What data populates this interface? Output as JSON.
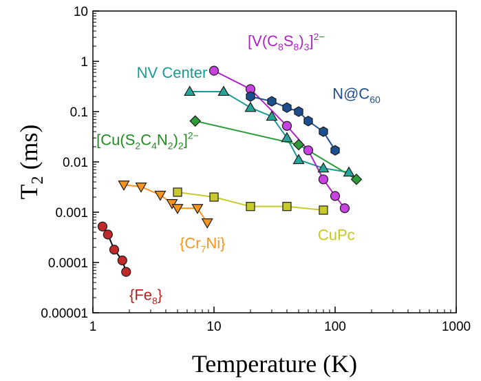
{
  "chart_data": {
    "type": "scatter",
    "xscale": "log",
    "yscale": "log",
    "xlim": [
      1,
      1000
    ],
    "ylim": [
      1e-05,
      10
    ],
    "xlabel": "Temperature (K)",
    "ylabel": "T2 (ms)",
    "ylabel_parts": {
      "main": "T",
      "sub": "2",
      "rest": " (ms)"
    },
    "xticks": [
      {
        "value": 1,
        "label": "1"
      },
      {
        "value": 10,
        "label": "10"
      },
      {
        "value": 100,
        "label": "100"
      },
      {
        "value": 1000,
        "label": "1000"
      }
    ],
    "yticks": [
      {
        "value": 1e-05,
        "label": "0.00001"
      },
      {
        "value": 0.0001,
        "label": "0.0001"
      },
      {
        "value": 0.001,
        "label": "0.001"
      },
      {
        "value": 0.01,
        "label": "0.01"
      },
      {
        "value": 0.1,
        "label": "0.1"
      },
      {
        "value": 1,
        "label": "1"
      },
      {
        "value": 10,
        "label": "10"
      }
    ],
    "series": [
      {
        "name": "{Fe8}",
        "label_parts": [
          {
            "t": "{Fe"
          },
          {
            "t": "8",
            "sub": true
          },
          {
            "t": "}"
          }
        ],
        "marker": "circle",
        "color": "#c0282a",
        "line_color": "#000000",
        "label_color": "#b22222",
        "label_pos": {
          "x": 2.0,
          "y": 1.8e-05
        },
        "x": [
          1.2,
          1.33,
          1.5,
          1.75,
          1.88
        ],
        "y": [
          0.00052,
          0.00036,
          0.00018,
          0.00011,
          6.5e-05
        ]
      },
      {
        "name": "{Cr7Ni}",
        "label_parts": [
          {
            "t": "{Cr"
          },
          {
            "t": "7",
            "sub": true
          },
          {
            "t": "Ni}"
          }
        ],
        "marker": "triangle-down",
        "color": "#f7941d",
        "line_color": "#f7941d",
        "label_color": "#f7941d",
        "label_pos": {
          "x": 5.2,
          "y": 0.00019
        },
        "x": [
          1.8,
          2.5,
          3.6,
          4.5,
          5.0,
          7.3,
          8.8
        ],
        "y": [
          0.0035,
          0.0032,
          0.0022,
          0.0015,
          0.0012,
          0.0012,
          0.00062
        ]
      },
      {
        "name": "CuPc",
        "label_parts": [
          {
            "t": "CuPc"
          }
        ],
        "marker": "square",
        "color": "#c9c92b",
        "line_color": "#c9c92b",
        "label_color": "#c8c820",
        "label_pos": {
          "x": 72,
          "y": 0.00028
        },
        "x": [
          5,
          10,
          20,
          40,
          80
        ],
        "y": [
          0.0025,
          0.002,
          0.0013,
          0.0013,
          0.0011
        ]
      },
      {
        "name": "NV Center",
        "label_parts": [
          {
            "t": "NV Center"
          }
        ],
        "marker": "triangle-up",
        "color": "#26a69a",
        "line_color": "#1a9a92",
        "label_color": "#1a9a92",
        "label_pos": {
          "x": 2.3,
          "y": 0.47
        },
        "x": [
          6.3,
          12,
          20,
          30,
          40,
          50,
          80,
          130
        ],
        "y": [
          0.25,
          0.25,
          0.12,
          0.08,
          0.03,
          0.011,
          0.0075,
          0.0062
        ]
      },
      {
        "name": "[Cu(S2C4N2)2]2-",
        "label_parts": [
          {
            "t": "[Cu(S"
          },
          {
            "t": "2",
            "sub": true
          },
          {
            "t": "C"
          },
          {
            "t": "4",
            "sub": true
          },
          {
            "t": "N"
          },
          {
            "t": "2",
            "sub": true
          },
          {
            "t": ")"
          },
          {
            "t": "2",
            "sub": true
          },
          {
            "t": "]"
          },
          {
            "t": "2−",
            "sup": true
          }
        ],
        "marker": "diamond",
        "color": "#2e9b3a",
        "line_color": "#2e9b3a",
        "label_color": "#228b22",
        "label_pos": {
          "x": 1.07,
          "y": 0.0215
        },
        "x": [
          7,
          50,
          150
        ],
        "y": [
          0.065,
          0.022,
          0.0045
        ]
      },
      {
        "name": "[V(C8S8)3]2-",
        "label_parts": [
          {
            "t": "[V(C"
          },
          {
            "t": "8",
            "sub": true
          },
          {
            "t": "S"
          },
          {
            "t": "8",
            "sub": true
          },
          {
            "t": ")"
          },
          {
            "t": "3",
            "sub": true
          },
          {
            "t": "]"
          },
          {
            "t": "2−",
            "sup": true
          }
        ],
        "marker": "circle",
        "color": "#c742e0",
        "line_color": "#b020c8",
        "label_color": "#b020c8",
        "label_pos": {
          "x": 19,
          "y": 2.0
        },
        "x": [
          10,
          20,
          40,
          60,
          80,
          100,
          120
        ],
        "y": [
          0.65,
          0.28,
          0.052,
          0.017,
          0.0045,
          0.0021,
          0.0012
        ]
      },
      {
        "name": "N@C60",
        "label_parts": [
          {
            "t": "N@C"
          },
          {
            "t": "60",
            "sub": true
          }
        ],
        "marker": "hexagon",
        "color": "#1b4f8f",
        "line_color": "#1b4f8f",
        "label_color": "#1f4e8c",
        "label_pos": {
          "x": 95,
          "y": 0.18
        },
        "x": [
          20,
          30,
          40,
          50,
          60,
          80,
          100
        ],
        "y": [
          0.2,
          0.16,
          0.12,
          0.1,
          0.065,
          0.04,
          0.017
        ]
      }
    ]
  }
}
